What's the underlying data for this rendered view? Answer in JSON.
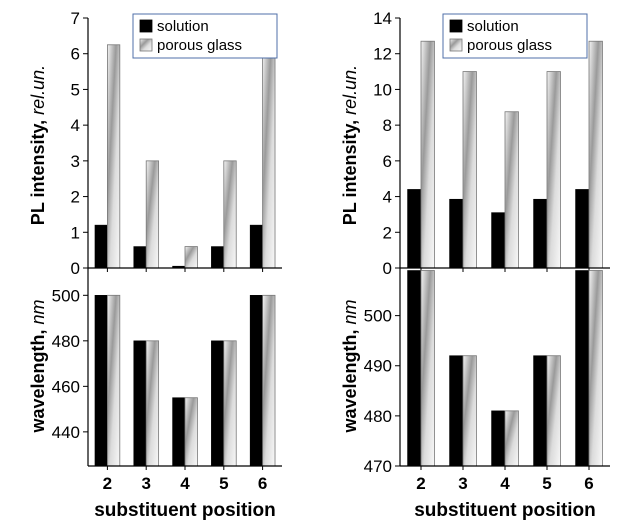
{
  "chart_data": [
    {
      "type": "bar",
      "categories": [
        "2",
        "3",
        "4",
        "5",
        "6"
      ],
      "series": [
        {
          "name": "solution",
          "values": [
            1.2,
            0.6,
            0.05,
            0.6,
            1.2
          ],
          "color": "#000000"
        },
        {
          "name": "porous glass",
          "values": [
            6.25,
            3.0,
            0.6,
            3.0,
            6.25
          ],
          "color": "#b8b8b8"
        }
      ],
      "ylim": [
        0,
        7
      ],
      "yticks": [
        0,
        1,
        2,
        3,
        4,
        5,
        6,
        7
      ],
      "ylabel_main": "PL intensity, ",
      "ylabel_unit": "rel.un.",
      "legend": "top-center"
    },
    {
      "type": "bar",
      "categories": [
        "2",
        "3",
        "4",
        "5",
        "6"
      ],
      "series": [
        {
          "name": "solution",
          "values": [
            4.4,
            3.85,
            3.1,
            3.85,
            4.4
          ],
          "color": "#000000"
        },
        {
          "name": "porous glass",
          "values": [
            12.7,
            11.0,
            8.75,
            11.0,
            12.7
          ],
          "color": "#b8b8b8"
        }
      ],
      "ylim": [
        0,
        14
      ],
      "yticks": [
        0,
        2,
        4,
        6,
        8,
        10,
        12,
        14
      ],
      "ylabel_main": "PL intensity, ",
      "ylabel_unit": "rel.un.",
      "legend": "top-center"
    },
    {
      "type": "bar",
      "categories": [
        "2",
        "3",
        "4",
        "5",
        "6"
      ],
      "series": [
        {
          "name": "solution",
          "values": [
            500,
            480,
            455,
            480,
            500
          ],
          "color": "#000000"
        },
        {
          "name": "porous glass",
          "values": [
            500,
            480,
            455,
            480,
            500
          ],
          "color": "#b8b8b8"
        }
      ],
      "ylim": [
        425,
        512
      ],
      "yticks": [
        440,
        460,
        480,
        500
      ],
      "ylabel_main": "wavelength, ",
      "ylabel_unit": "nm",
      "xlabel": "substituent position"
    },
    {
      "type": "bar",
      "categories": [
        "2",
        "3",
        "4",
        "5",
        "6"
      ],
      "series": [
        {
          "name": "solution",
          "values": [
            509,
            492,
            481,
            492,
            509
          ],
          "color": "#000000"
        },
        {
          "name": "porous glass",
          "values": [
            509,
            492,
            481,
            492,
            509
          ],
          "color": "#b8b8b8"
        }
      ],
      "ylim": [
        470,
        509.5
      ],
      "yticks": [
        470,
        480,
        490,
        500
      ],
      "ylabel_main": "wavelength, ",
      "ylabel_unit": "nm",
      "xlabel": "substituent position"
    }
  ]
}
